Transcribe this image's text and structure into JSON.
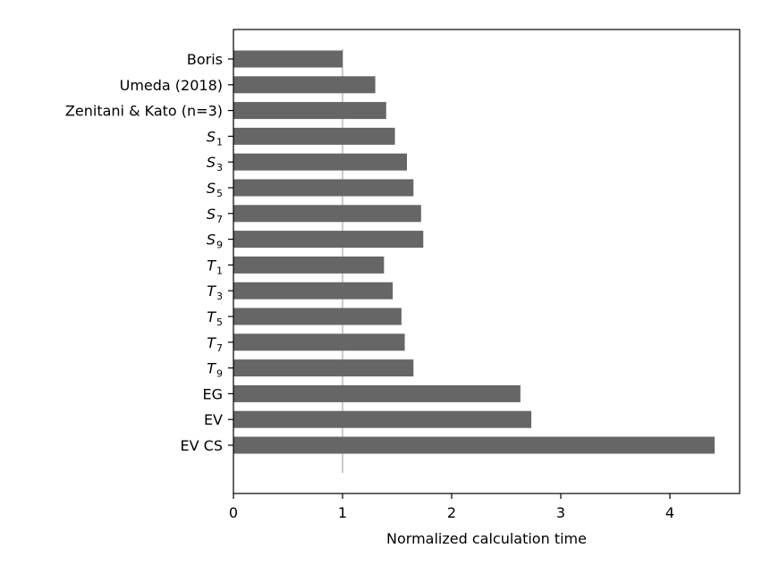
{
  "chart_data": {
    "type": "bar",
    "orientation": "horizontal",
    "categories": [
      {
        "text": "Boris",
        "sub": ""
      },
      {
        "text": "Umeda (2018)",
        "sub": ""
      },
      {
        "text": "Zenitani & Kato (n=3)",
        "sub": ""
      },
      {
        "text": "S",
        "sub": "1"
      },
      {
        "text": "S",
        "sub": "3"
      },
      {
        "text": "S",
        "sub": "5"
      },
      {
        "text": "S",
        "sub": "7"
      },
      {
        "text": "S",
        "sub": "9"
      },
      {
        "text": "T",
        "sub": "1"
      },
      {
        "text": "T",
        "sub": "3"
      },
      {
        "text": "T",
        "sub": "5"
      },
      {
        "text": "T",
        "sub": "7"
      },
      {
        "text": "T",
        "sub": "9"
      },
      {
        "text": "EG",
        "sub": ""
      },
      {
        "text": "EV",
        "sub": ""
      },
      {
        "text": "EV CS",
        "sub": ""
      }
    ],
    "values": [
      1.0,
      1.3,
      1.4,
      1.48,
      1.59,
      1.65,
      1.72,
      1.74,
      1.38,
      1.46,
      1.54,
      1.57,
      1.65,
      2.63,
      2.73,
      4.41
    ],
    "xlabel": "Normalized calculation time",
    "ylabel": "",
    "title": "",
    "xlim": [
      0,
      4.6
    ],
    "xticks": [
      "0",
      "1",
      "2",
      "3",
      "4"
    ],
    "reference_line": 1.0,
    "grid": false,
    "bar_color": "#666666",
    "reference_line_color": "#cccccc"
  }
}
